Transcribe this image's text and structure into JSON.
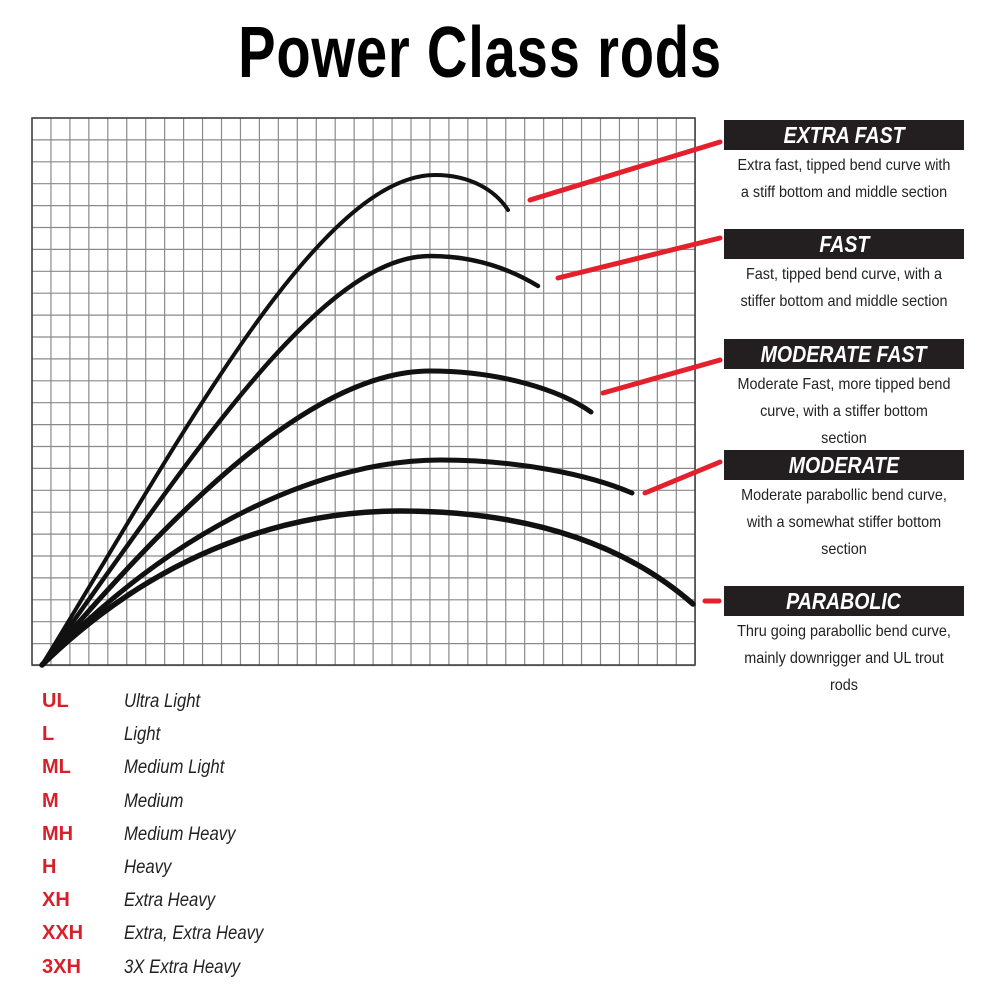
{
  "title": "Power Class rods",
  "colors": {
    "accent_red": "#e3202b",
    "header_bg": "#231f20",
    "curve": "#111111",
    "grid": "#888888"
  },
  "actions": [
    {
      "name": "EXTRA FAST",
      "desc": "Extra fast, tipped bend curve with a stiff bottom and middle section"
    },
    {
      "name": "FAST",
      "desc": "Fast, tipped bend curve, with a stiffer bottom and middle section"
    },
    {
      "name": "MODERATE FAST",
      "desc": "Moderate Fast, more tipped bend curve, with a stiffer bottom section"
    },
    {
      "name": "MODERATE",
      "desc": "Moderate parabollic bend curve, with a somewhat stiffer bottom section"
    },
    {
      "name": "PARABOLIC",
      "desc": "Thru going parabollic bend curve, mainly downrigger and UL trout rods"
    }
  ],
  "power_classes": [
    {
      "code": "UL",
      "name": "Ultra Light"
    },
    {
      "code": "L",
      "name": "Light"
    },
    {
      "code": "ML",
      "name": "Medium Light"
    },
    {
      "code": "M",
      "name": "Medium"
    },
    {
      "code": "MH",
      "name": "Medium Heavy"
    },
    {
      "code": "H",
      "name": "Heavy"
    },
    {
      "code": "XH",
      "name": "Extra Heavy"
    },
    {
      "code": "XXH",
      "name": "Extra, Extra Heavy"
    },
    {
      "code": "3XH",
      "name": "3X Extra Heavy"
    }
  ]
}
